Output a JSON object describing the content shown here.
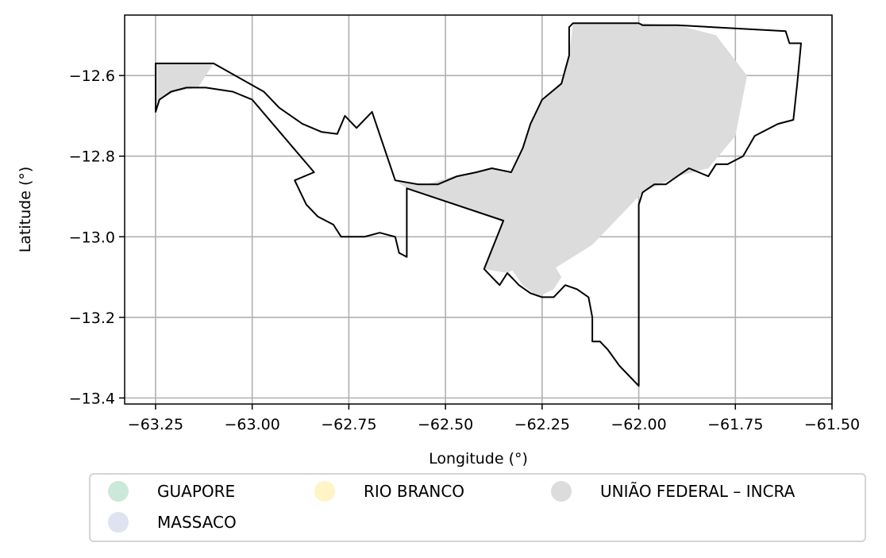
{
  "chart_data": {
    "type": "map",
    "xlabel": "Longitude (°)",
    "ylabel": "Latitude (°)",
    "xlim": [
      -63.33,
      -61.5
    ],
    "ylim": [
      -13.415,
      -12.45
    ],
    "xticks": [
      -63.25,
      -63.0,
      -62.75,
      -62.5,
      -62.25,
      -62.0,
      -61.75,
      -61.5
    ],
    "yticks": [
      -12.6,
      -12.8,
      -13.0,
      -13.2,
      -13.4
    ],
    "xtick_labels": [
      "−63.25",
      "−63.00",
      "−62.75",
      "−62.50",
      "−62.25",
      "−62.00",
      "−61.75",
      "−61.50"
    ],
    "ytick_labels": [
      "−12.6",
      "−12.8",
      "−13.0",
      "−13.2",
      "−13.4"
    ],
    "grid": true,
    "legend_position": "bottom-center",
    "legend": [
      {
        "label": "GUAPORE",
        "color": "#cce8da"
      },
      {
        "label": "RIO BRANCO",
        "color": "#fff4c6"
      },
      {
        "label": "UNIÃO FEDERAL – INCRA",
        "color": "#dcdcdc"
      },
      {
        "label": "MASSACO",
        "color": "#dfe2f1"
      }
    ],
    "fill_color": "#dcdcdc",
    "boundary_color": "#000000",
    "boundary": [
      [
        -63.25,
        -12.57
      ],
      [
        -63.1,
        -12.57
      ],
      [
        -62.97,
        -12.64
      ],
      [
        -62.93,
        -12.68
      ],
      [
        -62.87,
        -12.72
      ],
      [
        -62.82,
        -12.74
      ],
      [
        -62.78,
        -12.745
      ],
      [
        -62.76,
        -12.7
      ],
      [
        -62.73,
        -12.73
      ],
      [
        -62.69,
        -12.69
      ],
      [
        -62.63,
        -12.86
      ],
      [
        -62.57,
        -12.87
      ],
      [
        -62.52,
        -12.87
      ],
      [
        -62.47,
        -12.85
      ],
      [
        -62.42,
        -12.84
      ],
      [
        -62.38,
        -12.83
      ],
      [
        -62.33,
        -12.84
      ],
      [
        -62.3,
        -12.78
      ],
      [
        -62.28,
        -12.72
      ],
      [
        -62.25,
        -12.66
      ],
      [
        -62.2,
        -12.62
      ],
      [
        -62.18,
        -12.55
      ],
      [
        -62.18,
        -12.48
      ],
      [
        -62.17,
        -12.47
      ],
      [
        -62.0,
        -12.47
      ],
      [
        -61.99,
        -12.475
      ],
      [
        -61.9,
        -12.475
      ],
      [
        -61.62,
        -12.49
      ],
      [
        -61.61,
        -12.52
      ],
      [
        -61.58,
        -12.52
      ],
      [
        -61.59,
        -12.62
      ],
      [
        -61.6,
        -12.71
      ],
      [
        -61.64,
        -12.72
      ],
      [
        -61.7,
        -12.75
      ],
      [
        -61.73,
        -12.8
      ],
      [
        -61.77,
        -12.82
      ],
      [
        -61.8,
        -12.82
      ],
      [
        -61.82,
        -12.85
      ],
      [
        -61.87,
        -12.83
      ],
      [
        -61.9,
        -12.85
      ],
      [
        -61.93,
        -12.87
      ],
      [
        -61.96,
        -12.87
      ],
      [
        -61.99,
        -12.89
      ],
      [
        -62.0,
        -12.92
      ],
      [
        -62.0,
        -13.1
      ],
      [
        -62.0,
        -13.37
      ],
      [
        -62.02,
        -13.35
      ],
      [
        -62.05,
        -13.32
      ],
      [
        -62.08,
        -13.28
      ],
      [
        -62.1,
        -13.26
      ],
      [
        -62.12,
        -13.26
      ],
      [
        -62.12,
        -13.2
      ],
      [
        -62.13,
        -13.15
      ],
      [
        -62.16,
        -13.13
      ],
      [
        -62.19,
        -13.12
      ],
      [
        -62.22,
        -13.15
      ],
      [
        -62.25,
        -13.15
      ],
      [
        -62.28,
        -13.14
      ],
      [
        -62.31,
        -13.12
      ],
      [
        -62.32,
        -13.11
      ],
      [
        -62.34,
        -13.09
      ],
      [
        -62.36,
        -13.12
      ],
      [
        -62.38,
        -13.1
      ],
      [
        -62.4,
        -13.08
      ],
      [
        -62.35,
        -12.96
      ],
      [
        -62.6,
        -12.88
      ],
      [
        -62.6,
        -13.05
      ],
      [
        -62.62,
        -13.04
      ],
      [
        -62.63,
        -13.0
      ],
      [
        -62.67,
        -12.99
      ],
      [
        -62.71,
        -13.0
      ],
      [
        -62.74,
        -13.0
      ],
      [
        -62.77,
        -13.0
      ],
      [
        -62.79,
        -12.97
      ],
      [
        -62.83,
        -12.95
      ],
      [
        -62.86,
        -12.92
      ],
      [
        -62.89,
        -12.86
      ],
      [
        -62.84,
        -12.84
      ],
      [
        -63.0,
        -12.66
      ],
      [
        -63.05,
        -12.64
      ],
      [
        -63.12,
        -12.63
      ],
      [
        -63.17,
        -12.63
      ],
      [
        -63.21,
        -12.64
      ],
      [
        -63.24,
        -12.66
      ],
      [
        -63.25,
        -12.69
      ]
    ],
    "filled_regions": [
      [
        [
          -63.25,
          -12.57
        ],
        [
          -63.1,
          -12.57
        ],
        [
          -63.14,
          -12.63
        ],
        [
          -63.2,
          -12.64
        ],
        [
          -63.24,
          -12.66
        ],
        [
          -63.25,
          -12.69
        ]
      ],
      [
        [
          -62.63,
          -12.86
        ],
        [
          -62.55,
          -12.87
        ],
        [
          -62.48,
          -12.85
        ],
        [
          -62.38,
          -12.83
        ],
        [
          -62.33,
          -12.84
        ],
        [
          -62.3,
          -12.78
        ],
        [
          -62.28,
          -12.72
        ],
        [
          -62.25,
          -12.66
        ],
        [
          -62.2,
          -12.62
        ],
        [
          -62.18,
          -12.55
        ],
        [
          -62.17,
          -12.47
        ],
        [
          -62.0,
          -12.47
        ],
        [
          -61.9,
          -12.475
        ],
        [
          -61.8,
          -12.5
        ],
        [
          -61.72,
          -12.6
        ],
        [
          -61.75,
          -12.75
        ],
        [
          -61.82,
          -12.83
        ],
        [
          -61.9,
          -12.85
        ],
        [
          -61.99,
          -12.89
        ],
        [
          -62.05,
          -12.95
        ],
        [
          -62.12,
          -13.02
        ],
        [
          -62.22,
          -13.08
        ],
        [
          -62.3,
          -13.07
        ],
        [
          -62.34,
          -13.09
        ],
        [
          -62.4,
          -13.08
        ],
        [
          -62.35,
          -12.96
        ],
        [
          -62.6,
          -12.88
        ]
      ],
      [
        [
          -62.38,
          -13.08
        ],
        [
          -62.33,
          -13.08
        ],
        [
          -62.3,
          -13.12
        ],
        [
          -62.26,
          -13.15
        ],
        [
          -62.22,
          -13.13
        ],
        [
          -62.2,
          -13.1
        ],
        [
          -62.25,
          -13.02
        ],
        [
          -62.32,
          -13.0
        ]
      ]
    ]
  }
}
